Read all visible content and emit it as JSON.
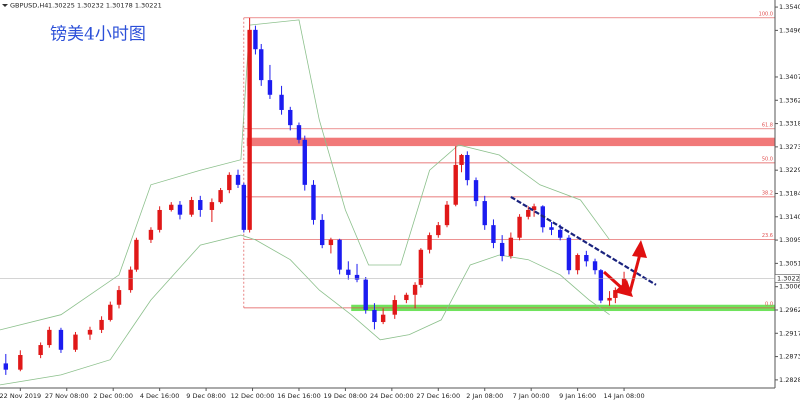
{
  "chart_data": {
    "type": "candlestick",
    "title": "镑美4小时图",
    "header": "GBPUSD,H4",
    "header_prices": "1.30225 1.30232 1.30178 1.30221",
    "up_color": "#e01818",
    "down_color": "#1c1cf0",
    "x": [
      -5,
      0,
      7,
      10,
      14,
      19,
      24,
      28,
      31,
      34,
      38,
      40,
      45,
      48,
      52,
      55,
      59,
      62,
      66,
      69,
      72,
      75,
      77,
      79,
      81,
      83,
      86,
      90,
      93,
      96,
      98,
      101,
      104,
      107,
      110,
      113,
      116,
      119,
      122,
      125,
      129,
      133,
      136,
      138,
      141,
      144,
      147,
      150,
      152,
      154,
      157,
      160,
      163,
      166,
      169,
      172,
      175,
      177,
      180,
      183,
      186,
      189,
      192,
      195,
      198,
      200,
      203,
      205,
      208
    ],
    "open": [
      1.286,
      1.2848,
      1.2876,
      1.2895,
      1.2924,
      1.2886,
      1.2915,
      1.2924,
      1.2943,
      1.2972,
      1.3,
      1.3039,
      1.3096,
      1.3115,
      1.3153,
      1.3163,
      1.3144,
      1.3172,
      1.3153,
      1.3168,
      1.3191,
      1.322,
      1.3201,
      1.3115,
      1.3497,
      1.346,
      1.3401,
      1.3373,
      1.3344,
      1.3315,
      1.3287,
      1.3201,
      1.3134,
      1.3086,
      1.3096,
      1.3039,
      1.3029,
      1.302,
      1.2962,
      1.2939,
      1.2953,
      1.2981,
      1.2991,
      1.301,
      1.3077,
      1.3105,
      1.3124,
      1.3163,
      1.3239,
      1.3258,
      1.321,
      1.317,
      1.3124,
      1.309,
      1.3065,
      1.31,
      1.314,
      1.3153,
      1.316,
      1.312,
      1.3115,
      1.31,
      1.3038,
      1.3067,
      1.3055,
      1.3038,
      1.298,
      1.2985,
      1.3
    ],
    "high": [
      1.2878,
      1.2885,
      1.29,
      1.293,
      1.2928,
      1.292,
      1.293,
      1.295,
      1.2978,
      1.3008,
      1.3045,
      1.31,
      1.312,
      1.316,
      1.3168,
      1.317,
      1.3178,
      1.318,
      1.3175,
      1.3195,
      1.3225,
      1.323,
      1.3205,
      1.352,
      1.3505,
      1.347,
      1.343,
      1.339,
      1.335,
      1.332,
      1.3295,
      1.321,
      1.3145,
      1.31,
      1.3098,
      1.3055,
      1.305,
      1.3025,
      1.2975,
      1.2965,
      1.299,
      1.2995,
      1.3015,
      1.308,
      1.311,
      1.313,
      1.317,
      1.3275,
      1.326,
      1.3265,
      1.3215,
      1.318,
      1.3135,
      1.3105,
      1.311,
      1.3145,
      1.316,
      1.3165,
      1.3162,
      1.313,
      1.3125,
      1.3105,
      1.307,
      1.3075,
      1.306,
      1.304,
      1.2998,
      1.3005,
      1.3035
    ],
    "low": [
      1.2838,
      1.2845,
      1.287,
      1.289,
      1.288,
      1.2882,
      1.2905,
      1.2918,
      1.294,
      1.2965,
      1.2995,
      1.3035,
      1.309,
      1.311,
      1.315,
      1.3135,
      1.314,
      1.314,
      1.313,
      1.3165,
      1.3185,
      1.3195,
      1.311,
      1.311,
      1.345,
      1.339,
      1.3365,
      1.3335,
      1.3305,
      1.328,
      1.319,
      1.3125,
      1.308,
      1.307,
      1.303,
      1.302,
      1.3015,
      1.2955,
      1.2925,
      1.2935,
      1.2945,
      1.2975,
      1.2965,
      1.3005,
      1.307,
      1.31,
      1.312,
      1.316,
      1.3225,
      1.32,
      1.316,
      1.3115,
      1.308,
      1.3055,
      1.306,
      1.3095,
      1.3135,
      1.314,
      1.311,
      1.3105,
      1.3095,
      1.303,
      1.303,
      1.3045,
      1.303,
      1.2975,
      1.297,
      1.2975,
      1.2995
    ],
    "close": [
      1.2848,
      1.2876,
      1.2895,
      1.2924,
      1.2886,
      1.2915,
      1.2924,
      1.2943,
      1.2972,
      1.3,
      1.3039,
      1.3096,
      1.3115,
      1.3153,
      1.3163,
      1.3144,
      1.3172,
      1.3153,
      1.3168,
      1.3191,
      1.322,
      1.3201,
      1.3115,
      1.3497,
      1.346,
      1.3401,
      1.3373,
      1.3344,
      1.3315,
      1.3287,
      1.3201,
      1.3134,
      1.3086,
      1.3096,
      1.3039,
      1.3029,
      1.302,
      1.2962,
      1.2939,
      1.2953,
      1.2981,
      1.2991,
      1.301,
      1.3077,
      1.3105,
      1.3124,
      1.3163,
      1.3239,
      1.3258,
      1.321,
      1.317,
      1.3124,
      1.309,
      1.3065,
      1.31,
      1.314,
      1.3153,
      1.316,
      1.312,
      1.3115,
      1.31,
      1.3038,
      1.3067,
      1.3055,
      1.3038,
      1.298,
      1.2985,
      1.3,
      1.3022
    ],
    "bands": [
      {
        "color": "#8cc08c",
        "x": [
          -7,
          14,
          34,
          45,
          62,
          76,
          79,
          96,
          103,
          112,
          120,
          131,
          141,
          151,
          165,
          179,
          193,
          203
        ],
        "values": [
          1.2924,
          1.2953,
          1.3029,
          1.3201,
          1.3229,
          1.3249,
          1.3506,
          1.3516,
          1.3325,
          1.3153,
          1.3048,
          1.3048,
          1.3229,
          1.3277,
          1.3258,
          1.3201,
          1.3172,
          1.3096
        ]
      },
      {
        "color": "#8cc08c",
        "x": [
          -7,
          14,
          31,
          45,
          62,
          76,
          81,
          93,
          103,
          114,
          124,
          134,
          145,
          155,
          165,
          175,
          186,
          196,
          203
        ],
        "values": [
          1.2819,
          1.2838,
          1.2867,
          1.2981,
          1.3086,
          1.3105,
          1.3096,
          1.3058,
          1.3,
          1.2953,
          1.2905,
          1.2915,
          1.2943,
          1.3048,
          1.3067,
          1.3058,
          1.3029,
          1.2981,
          1.2953
        ]
      }
    ],
    "fib": {
      "x_start": 77,
      "color": "#e05050",
      "levels": [
        {
          "label": "100.0",
          "value": 1.352
        },
        {
          "label": "61.8",
          "value": 1.3308
        },
        {
          "label": "50.0",
          "value": 1.3243
        },
        {
          "label": "38.2",
          "value": 1.3178
        },
        {
          "label": "23.6",
          "value": 1.3097
        },
        {
          "label": "0.0",
          "value": 1.2966
        }
      ]
    },
    "zones": [
      {
        "x_start": 78,
        "low": 1.3275,
        "high": 1.3291,
        "color": "#f06a6a"
      },
      {
        "x_start": 114,
        "low": 1.296,
        "high": 1.2972,
        "color": "#5fe04a"
      }
    ],
    "trendline": {
      "x": [
        169,
        219
      ],
      "values": [
        1.3178,
        1.301
      ],
      "color": "#1a237e"
    },
    "last_price": 1.30221,
    "xlim": [
      -7,
      260
    ],
    "ylim": [
      1.2813,
      1.3554
    ],
    "xticks": [
      {
        "value": 0,
        "label": "22 Nov 2019"
      },
      {
        "value": 16,
        "label": "27 Nov 08:00"
      },
      {
        "value": 32,
        "label": "2 Dec 00:00"
      },
      {
        "value": 48,
        "label": "4 Dec 16:00"
      },
      {
        "value": 64,
        "label": "9 Dec 08:00"
      },
      {
        "value": 80,
        "label": "12 Dec 00:00"
      },
      {
        "value": 96,
        "label": "16 Dec 16:00"
      },
      {
        "value": 112,
        "label": "19 Dec 08:00"
      },
      {
        "value": 128,
        "label": "24 Dec 00:00"
      },
      {
        "value": 144,
        "label": "27 Dec 16:00"
      },
      {
        "value": 160,
        "label": "2 Jan 08:00"
      },
      {
        "value": 176,
        "label": "7 Jan 00:00"
      },
      {
        "value": 192,
        "label": "9 Jan 16:00"
      },
      {
        "value": 208,
        "label": "14 Jan 08:00"
      }
    ],
    "yticks": [
      1.35405,
      1.3496,
      {
        "value": 1.3407,
        "label": "1.34070"
      },
      1.33625,
      {
        "value": 1.3318,
        "label": "1.33180"
      },
      1.32735,
      {
        "value": 1.3229,
        "label": "1.32290"
      },
      1.31845,
      {
        "value": 1.314,
        "label": "1.31400"
      },
      1.30955,
      {
        "value": 1.3051,
        "label": "1.30510"
      },
      1.30065,
      {
        "value": 1.2962,
        "label": "1.29620"
      },
      1.29175,
      {
        "value": 1.2873,
        "label": "1.28730"
      },
      1.28285
    ]
  }
}
